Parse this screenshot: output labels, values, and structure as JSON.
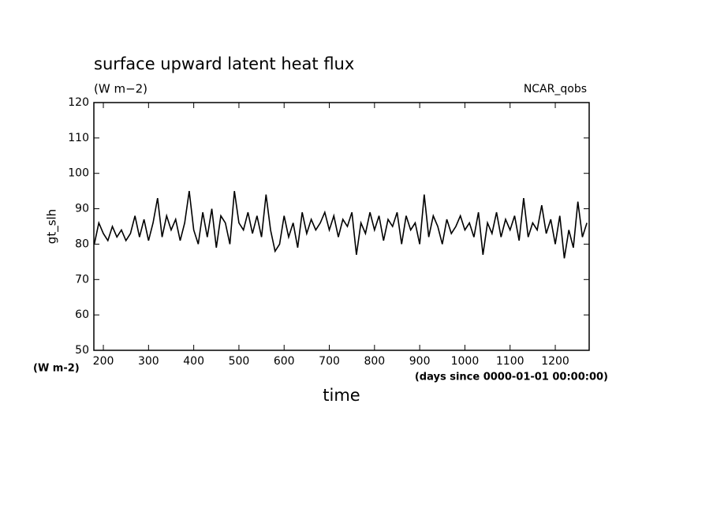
{
  "chart_data": {
    "type": "line",
    "title": "surface upward latent heat flux",
    "subtitle": "(W m−2)",
    "annotation": "NCAR_qobs",
    "y_label": "gt_slh",
    "y_units": "(W m-2)",
    "x_label": "time",
    "x_units": "(days since 0000-01-01 00:00:00)",
    "x": [
      180,
      190,
      200,
      210,
      220,
      230,
      240,
      250,
      260,
      270,
      280,
      290,
      300,
      310,
      320,
      330,
      340,
      350,
      360,
      370,
      380,
      390,
      400,
      410,
      420,
      430,
      440,
      450,
      460,
      470,
      480,
      490,
      500,
      510,
      520,
      530,
      540,
      550,
      560,
      570,
      580,
      590,
      600,
      610,
      620,
      630,
      640,
      650,
      660,
      670,
      680,
      690,
      700,
      710,
      720,
      730,
      740,
      750,
      760,
      770,
      780,
      790,
      800,
      810,
      820,
      830,
      840,
      850,
      860,
      870,
      880,
      890,
      900,
      910,
      920,
      930,
      940,
      950,
      960,
      970,
      980,
      990,
      1000,
      1010,
      1020,
      1030,
      1040,
      1050,
      1060,
      1070,
      1080,
      1090,
      1100,
      1110,
      1120,
      1130,
      1140,
      1150,
      1160,
      1170,
      1180,
      1190,
      1200,
      1210,
      1220,
      1230,
      1240,
      1250,
      1260,
      1270
    ],
    "values": [
      80,
      86,
      83,
      81,
      85,
      82,
      84,
      81,
      83,
      88,
      82,
      87,
      81,
      86,
      93,
      82,
      88,
      84,
      87,
      81,
      86,
      95,
      84,
      80,
      89,
      82,
      90,
      79,
      88,
      86,
      80,
      95,
      86,
      84,
      89,
      83,
      88,
      82,
      94,
      84,
      78,
      80,
      88,
      82,
      86,
      79,
      89,
      83,
      87,
      84,
      86,
      89,
      84,
      88,
      82,
      87,
      85,
      89,
      77,
      86,
      83,
      89,
      84,
      88,
      81,
      87,
      85,
      89,
      80,
      88,
      84,
      86,
      80,
      94,
      82,
      88,
      85,
      80,
      87,
      83,
      85,
      88,
      84,
      86,
      82,
      89,
      77,
      86,
      83,
      89,
      82,
      87,
      84,
      88,
      81,
      93,
      82,
      86,
      84,
      91,
      83,
      87,
      80,
      88,
      76,
      84,
      79,
      92,
      82,
      86
    ],
    "color": "#000000",
    "xlim": [
      179,
      1275
    ],
    "ylim": [
      50,
      120
    ],
    "xticks": [
      200,
      300,
      400,
      500,
      600,
      700,
      800,
      900,
      1000,
      1100,
      1200
    ],
    "yticks": [
      50,
      60,
      70,
      80,
      90,
      100,
      110,
      120
    ]
  }
}
